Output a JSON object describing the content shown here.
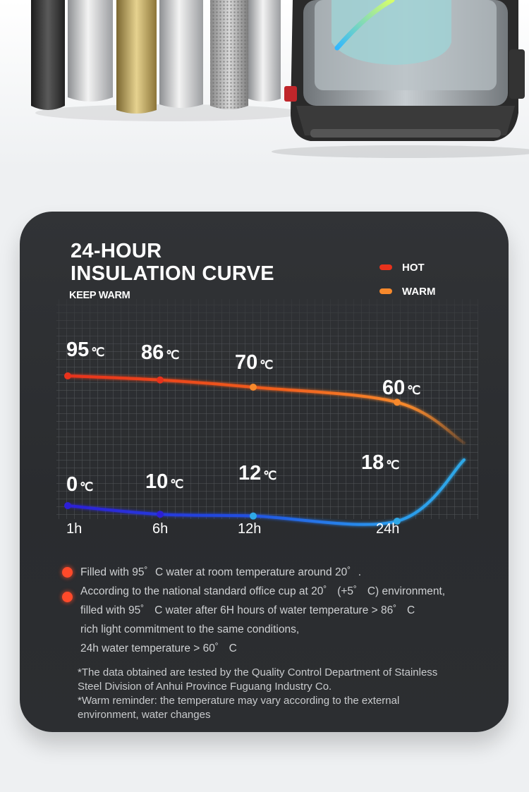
{
  "card": {
    "title": "24-HOUR\nINSULATION CURVE",
    "subtitle": "KEEP WARM",
    "legend": [
      {
        "label": "HOT",
        "color": "#e8321c"
      },
      {
        "label": "WARM",
        "color": "#f7892c"
      }
    ]
  },
  "chart_data": {
    "type": "line",
    "x": [
      "1h",
      "6h",
      "12h",
      "24h"
    ],
    "series": [
      {
        "name": "HOT",
        "values": [
          95,
          86,
          70,
          60
        ],
        "unit": "℃",
        "color": "#e8321c",
        "end_color": "#f7892c"
      },
      {
        "values": [
          0,
          10,
          12,
          18
        ],
        "unit": "℃",
        "color": "#2d1fd6",
        "end_color": "#2fa8e6"
      }
    ],
    "grid": true
  },
  "notes": {
    "line_1": "Filled with 95゜C water at room temperature around 20゜.",
    "line_2": "According to the national standard office cup at 20゜ (+5゜ C) environment,",
    "line_3": "filled with 95゜ C water after 6H hours of water temperature > 86゜ C",
    "line_4": "rich light commitment to the same conditions,",
    "line_5": "24h water temperature > 60゜ C",
    "disclaimer_1": "*The data obtained are tested by the Quality Control Department of Stainless",
    "disclaimer_2": "Steel Division of Anhui Province Fuguang Industry Co.",
    "disclaimer_3": "*Warm reminder: the temperature may vary according to the external",
    "disclaimer_4": "environment, water changes"
  }
}
